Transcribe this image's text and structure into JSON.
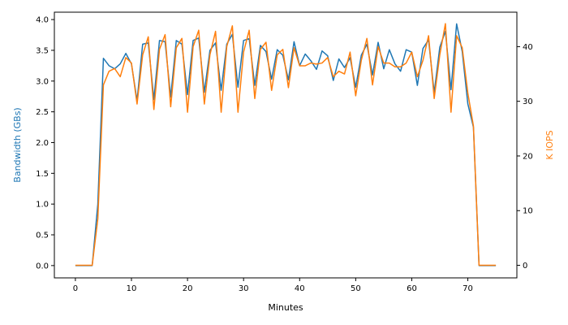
{
  "chart_data": {
    "type": "line",
    "title": "",
    "xlabel": "Minutes",
    "ylabel_left": "Bandwidth (GBs)",
    "ylabel_right": "K IOPS",
    "xlim": [
      -3.75,
      78.75
    ],
    "ylim_left": [
      -0.2,
      4.12
    ],
    "ylim_right": [
      -2.3,
      46.3
    ],
    "xticks": [
      0,
      10,
      20,
      30,
      40,
      50,
      60,
      70
    ],
    "yticks_left": [
      0.0,
      0.5,
      1.0,
      1.5,
      2.0,
      2.5,
      3.0,
      3.5,
      4.0
    ],
    "yticks_left_labels": [
      "0.0",
      "0.5",
      "1.0",
      "1.5",
      "2.0",
      "2.5",
      "3.0",
      "3.5",
      "4.0"
    ],
    "yticks_right": [
      0,
      10,
      20,
      30,
      40
    ],
    "grid": false,
    "x": [
      0,
      1,
      2,
      3,
      4,
      5,
      6,
      7,
      8,
      9,
      10,
      11,
      12,
      13,
      14,
      15,
      16,
      17,
      18,
      19,
      20,
      21,
      22,
      23,
      24,
      25,
      26,
      27,
      28,
      29,
      30,
      31,
      32,
      33,
      34,
      35,
      36,
      37,
      38,
      39,
      40,
      41,
      42,
      43,
      44,
      45,
      46,
      47,
      48,
      49,
      50,
      51,
      52,
      53,
      54,
      55,
      56,
      57,
      58,
      59,
      60,
      61,
      62,
      63,
      64,
      65,
      66,
      67,
      68,
      69,
      70,
      71,
      72,
      73,
      74,
      75
    ],
    "series": [
      {
        "name": "Bandwidth",
        "axis": "left",
        "color": "#1f77b4",
        "values": [
          0.0,
          0.0,
          0.0,
          0.0,
          1.0,
          3.37,
          3.25,
          3.2,
          3.28,
          3.45,
          3.28,
          2.68,
          3.6,
          3.62,
          2.7,
          3.66,
          3.64,
          2.74,
          3.66,
          3.6,
          2.78,
          3.66,
          3.7,
          2.82,
          3.5,
          3.62,
          2.85,
          3.6,
          3.76,
          2.9,
          3.66,
          3.69,
          2.93,
          3.58,
          3.48,
          3.03,
          3.51,
          3.42,
          3.02,
          3.64,
          3.25,
          3.44,
          3.33,
          3.19,
          3.49,
          3.41,
          3.01,
          3.36,
          3.22,
          3.38,
          2.9,
          3.42,
          3.6,
          3.1,
          3.63,
          3.2,
          3.51,
          3.28,
          3.16,
          3.51,
          3.47,
          2.93,
          3.53,
          3.67,
          2.81,
          3.55,
          3.81,
          2.86,
          3.93,
          3.48,
          2.63,
          2.25,
          0.0,
          0.0,
          0.0,
          0.0
        ]
      },
      {
        "name": "K IOPS",
        "axis": "right",
        "color": "#ff7f0e",
        "values": [
          0,
          0,
          0,
          0,
          8.5,
          33.0,
          35.5,
          36.0,
          34.5,
          38.0,
          37.0,
          29.5,
          38.5,
          41.8,
          28.5,
          39.5,
          42.2,
          29.0,
          39.8,
          41.5,
          28.0,
          40.0,
          43.0,
          29.5,
          38.5,
          42.8,
          28.0,
          40.0,
          43.8,
          28.0,
          39.0,
          43.0,
          30.5,
          39.5,
          40.8,
          32.0,
          38.5,
          39.5,
          32.5,
          39.8,
          36.5,
          36.5,
          37.0,
          36.8,
          37.0,
          38.0,
          34.5,
          35.5,
          35.0,
          39.0,
          31.0,
          37.5,
          41.5,
          33.0,
          40.0,
          37.0,
          37.0,
          36.3,
          36.3,
          37.0,
          39.0,
          34.5,
          37.5,
          42.0,
          30.5,
          38.5,
          44.2,
          28.0,
          42.0,
          39.8,
          31.5,
          25.5,
          0,
          0,
          0,
          0
        ]
      }
    ]
  }
}
